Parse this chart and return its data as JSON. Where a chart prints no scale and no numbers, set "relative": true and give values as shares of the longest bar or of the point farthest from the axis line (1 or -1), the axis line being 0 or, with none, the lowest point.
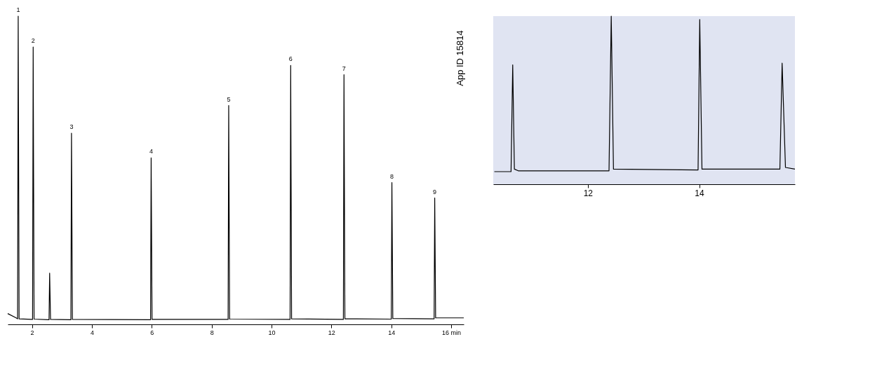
{
  "chart_data": [
    {
      "type": "line",
      "relative": true,
      "xlim": [
        1.19,
        16.42
      ],
      "xticks": [
        2,
        4,
        6,
        8,
        10,
        12,
        14,
        {
          "value": 16,
          "label": "16 min"
        }
      ],
      "grid": false,
      "tick_labels": "x",
      "series": [
        {
          "color": "#000000",
          "x": [
            1.19,
            1.45,
            1.52,
            1.54,
            1.57,
            2.0,
            2.02,
            2.04,
            2.07,
            2.55,
            2.57,
            2.59,
            2.62,
            3.28,
            3.3,
            3.32,
            3.35,
            5.94,
            5.96,
            5.98,
            6.01,
            8.53,
            8.55,
            8.57,
            8.6,
            10.6,
            10.62,
            10.64,
            10.67,
            12.38,
            12.4,
            12.42,
            12.45,
            13.98,
            14.0,
            14.02,
            14.05,
            15.41,
            15.43,
            15.45,
            15.48,
            16.42
          ],
          "values": [
            0.035,
            0.022,
            0.018,
            1.0,
            0.018,
            0.016,
            0.016,
            0.9,
            0.017,
            0.015,
            0.015,
            0.166,
            0.016,
            0.015,
            0.015,
            0.62,
            0.016,
            0.015,
            0.015,
            0.54,
            0.016,
            0.016,
            0.016,
            0.71,
            0.017,
            0.016,
            0.016,
            0.84,
            0.018,
            0.016,
            0.016,
            0.81,
            0.018,
            0.017,
            0.017,
            0.46,
            0.019,
            0.018,
            0.018,
            0.41,
            0.021,
            0.021
          ]
        }
      ],
      "annotations": [
        {
          "text": "1",
          "x": 1.54,
          "y": 1.0
        },
        {
          "text": "2",
          "x": 2.04,
          "y": 0.9
        },
        {
          "text": "3",
          "x": 3.32,
          "y": 0.62
        },
        {
          "text": "4",
          "x": 5.98,
          "y": 0.54
        },
        {
          "text": "5",
          "x": 8.57,
          "y": 0.71
        },
        {
          "text": "6",
          "x": 10.64,
          "y": 0.84
        },
        {
          "text": "7",
          "x": 12.42,
          "y": 0.81
        },
        {
          "text": "8",
          "x": 14.02,
          "y": 0.46
        },
        {
          "text": "9",
          "x": 15.45,
          "y": 0.41
        },
        "App ID 15814"
      ]
    },
    {
      "type": "line",
      "relative": true,
      "xlim": [
        10.3,
        15.72
      ],
      "xticks": [
        12,
        14
      ],
      "grid": false,
      "tick_labels": "x",
      "series": [
        {
          "color": "#000000",
          "x": [
            10.32,
            10.62,
            10.65,
            10.68,
            10.75,
            11.2,
            12.38,
            12.42,
            12.46,
            13.98,
            14.01,
            14.05,
            15.45,
            15.49,
            15.55,
            15.72
          ],
          "values": [
            0.075,
            0.075,
            0.71,
            0.09,
            0.08,
            0.08,
            0.08,
            1.0,
            0.09,
            0.085,
            0.98,
            0.09,
            0.09,
            0.72,
            0.1,
            0.09
          ]
        }
      ]
    }
  ]
}
